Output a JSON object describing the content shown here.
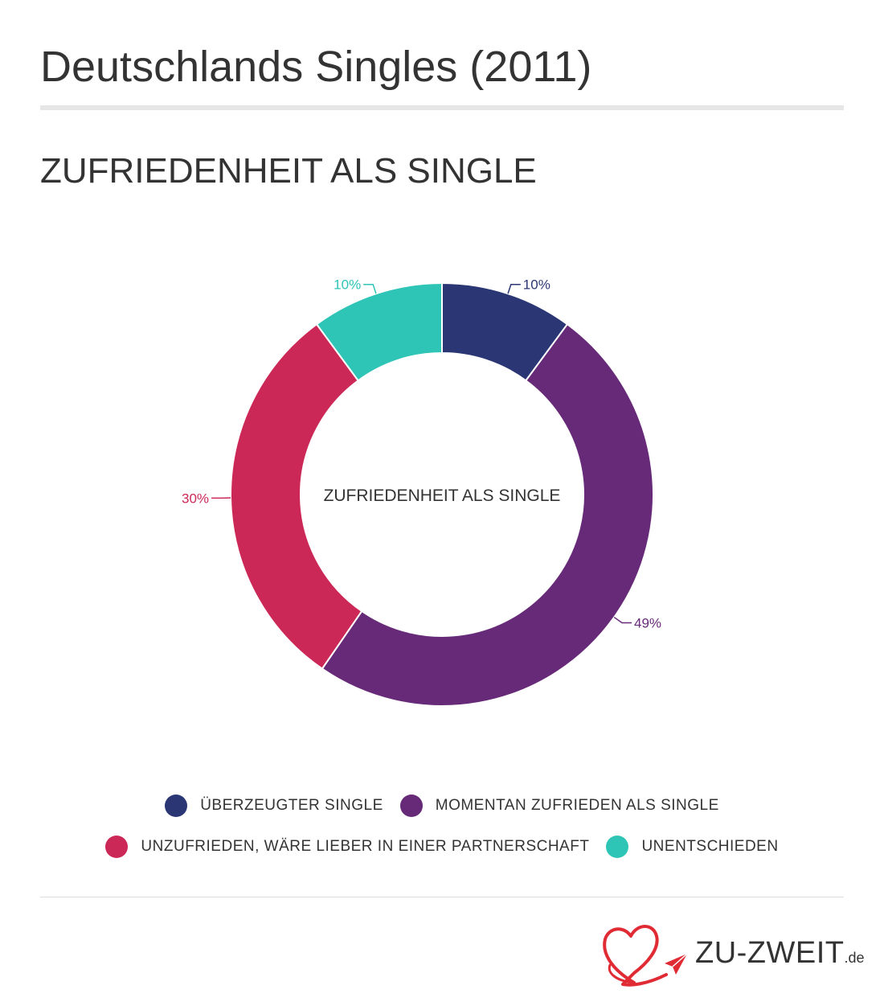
{
  "page": {
    "title": "Deutschlands Singles (2011)"
  },
  "chart_data": {
    "type": "pie",
    "variant": "donut",
    "title": "ZUFRIEDENHEIT ALS SINGLE",
    "center_label": "ZUFRIEDENHEIT ALS SINGLE",
    "categories": [
      "ÜBERZEUGTER SINGLE",
      "MOMENTAN ZUFRIEDEN ALS SINGLE",
      "UNZUFRIEDEN, WÄRE LIEBER IN EINER PARTNERSCHAFT",
      "UNENTSCHIEDEN"
    ],
    "values": [
      10,
      49,
      30,
      10
    ],
    "value_labels": [
      "10%",
      "49%",
      "30%",
      "10%"
    ],
    "colors": [
      "#2b3674",
      "#672a78",
      "#cc2857",
      "#2ec4b6"
    ],
    "legend_position": "bottom",
    "grid": false
  },
  "legend": {
    "rows": [
      [
        {
          "label": "ÜBERZEUGTER SINGLE",
          "color": "#2b3674"
        },
        {
          "label": "MOMENTAN ZUFRIEDEN ALS SINGLE",
          "color": "#672a78"
        }
      ],
      [
        {
          "label": "UNZUFRIEDEN, WÄRE LIEBER IN EINER PARTNERSCHAFT",
          "color": "#cc2857"
        },
        {
          "label": "UNENTSCHIEDEN",
          "color": "#2ec4b6"
        }
      ]
    ]
  },
  "brand": {
    "name": "ZU-ZWEIT",
    "tld": ".de",
    "logo_icon": "heart-paper-plane-icon",
    "accent": "#e02a34"
  }
}
